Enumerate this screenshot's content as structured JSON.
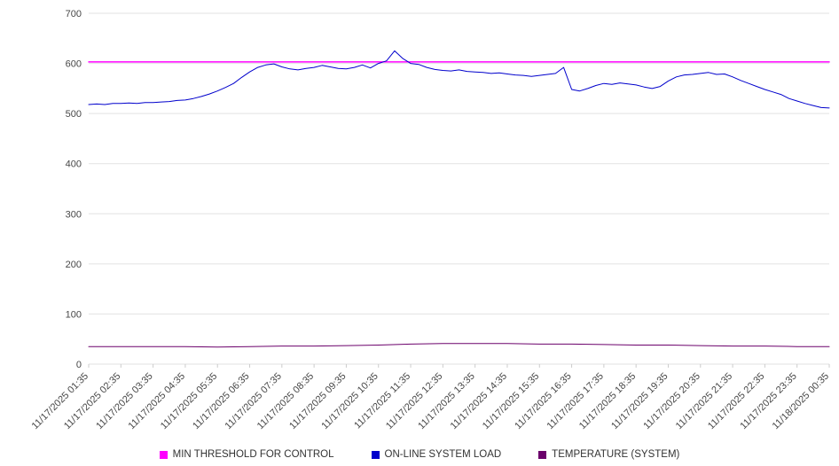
{
  "chart_data": {
    "type": "line",
    "title": "",
    "xlabel": "",
    "ylabel": "",
    "ylim": [
      0,
      700
    ],
    "y_ticks": [
      0,
      100,
      200,
      300,
      400,
      500,
      600,
      700
    ],
    "grid": true,
    "legend_position": "bottom",
    "x_labels": [
      "11/17/2025 01:35",
      "11/17/2025 02:35",
      "11/17/2025 03:35",
      "11/17/2025 04:35",
      "11/17/2025 05:35",
      "11/17/2025 06:35",
      "11/17/2025 07:35",
      "11/17/2025 08:35",
      "11/17/2025 09:35",
      "11/17/2025 10:35",
      "11/17/2025 11:35",
      "11/17/2025 12:35",
      "11/17/2025 13:35",
      "11/17/2025 14:35",
      "11/17/2025 15:35",
      "11/17/2025 16:35",
      "11/17/2025 17:35",
      "11/17/2025 18:35",
      "11/17/2025 19:35",
      "11/17/2025 20:35",
      "11/17/2025 21:35",
      "11/17/2025 22:35",
      "11/17/2025 23:35",
      "11/18/2025 00:35"
    ],
    "series": [
      {
        "id": "min-threshold",
        "name": "MIN THRESHOLD FOR CONTROL",
        "color": "#ff00ff",
        "width": 1.5,
        "constant": 603
      },
      {
        "id": "system-load",
        "name": "ON-LINE SYSTEM LOAD",
        "color": "#0000cc",
        "width": 1,
        "values": [
          518,
          519,
          518,
          520,
          520,
          521,
          520,
          522,
          522,
          523,
          524,
          526,
          527,
          530,
          534,
          539,
          545,
          552,
          560,
          572,
          583,
          592,
          597,
          599,
          593,
          589,
          587,
          590,
          592,
          596,
          593,
          590,
          589,
          592,
          597,
          591,
          600,
          605,
          625,
          610,
          600,
          598,
          592,
          588,
          586,
          585,
          587,
          584,
          583,
          582,
          580,
          581,
          579,
          577,
          576,
          574,
          576,
          578,
          580,
          592,
          548,
          545,
          550,
          556,
          560,
          558,
          561,
          559,
          557,
          553,
          550,
          554,
          565,
          573,
          577,
          578,
          580,
          582,
          578,
          579,
          573,
          566,
          560,
          554,
          548,
          543,
          538,
          530,
          525,
          520,
          516,
          512,
          511
        ]
      },
      {
        "id": "temperature",
        "name": "TEMPERATURE (SYSTEM)",
        "color": "#6b006b",
        "width": 1,
        "values": [
          35,
          35,
          35,
          35,
          34,
          35,
          36,
          36,
          37,
          38,
          40,
          41,
          41,
          41,
          40,
          40,
          39,
          38,
          38,
          37,
          36,
          36,
          35,
          35
        ]
      }
    ]
  }
}
